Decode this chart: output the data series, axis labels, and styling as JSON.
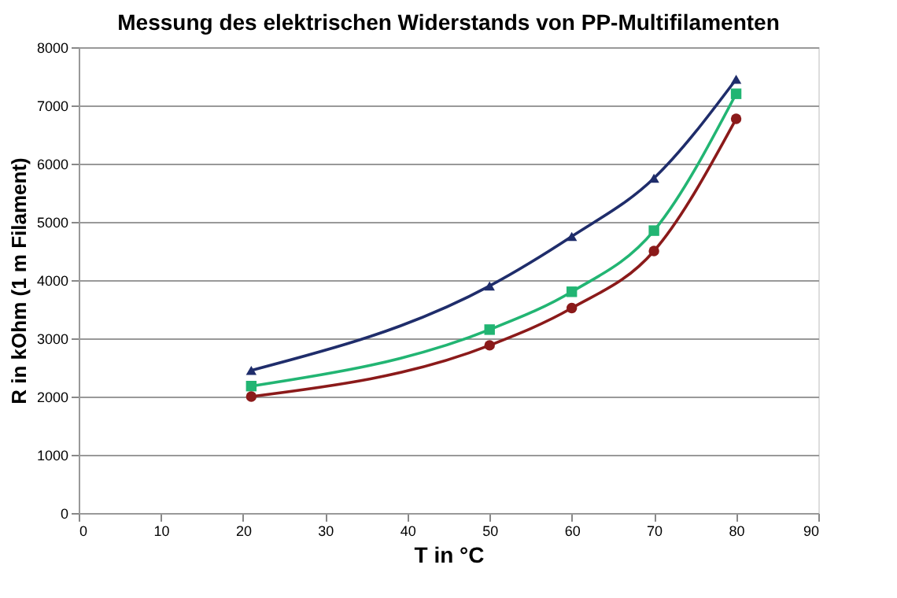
{
  "chart_data": {
    "type": "line",
    "title": "Messung des elektrischen Widerstands von PP-Multifilamenten",
    "xlabel": "T in °C",
    "ylabel": "R in kOhm (1 m Filament)",
    "x": [
      21,
      50,
      60,
      70,
      80
    ],
    "series": [
      {
        "color": "#1f2d6b",
        "marker": "triangle",
        "values": [
          2450,
          3900,
          4750,
          5750,
          7450
        ]
      },
      {
        "color": "#22b573",
        "marker": "square",
        "values": [
          2180,
          3150,
          3800,
          4850,
          7200
        ]
      },
      {
        "color": "#8b1a1a",
        "marker": "circle",
        "values": [
          2000,
          2880,
          3520,
          4500,
          6770
        ]
      }
    ],
    "xlim": [
      0,
      90
    ],
    "xticks": [
      0,
      10,
      20,
      30,
      40,
      50,
      60,
      70,
      80,
      90
    ],
    "ylim": [
      0,
      8000
    ],
    "yticks": [
      0,
      1000,
      2000,
      3000,
      4000,
      5000,
      6000,
      7000,
      8000
    ],
    "grid": "y",
    "legend": false,
    "line_style": "solid"
  }
}
